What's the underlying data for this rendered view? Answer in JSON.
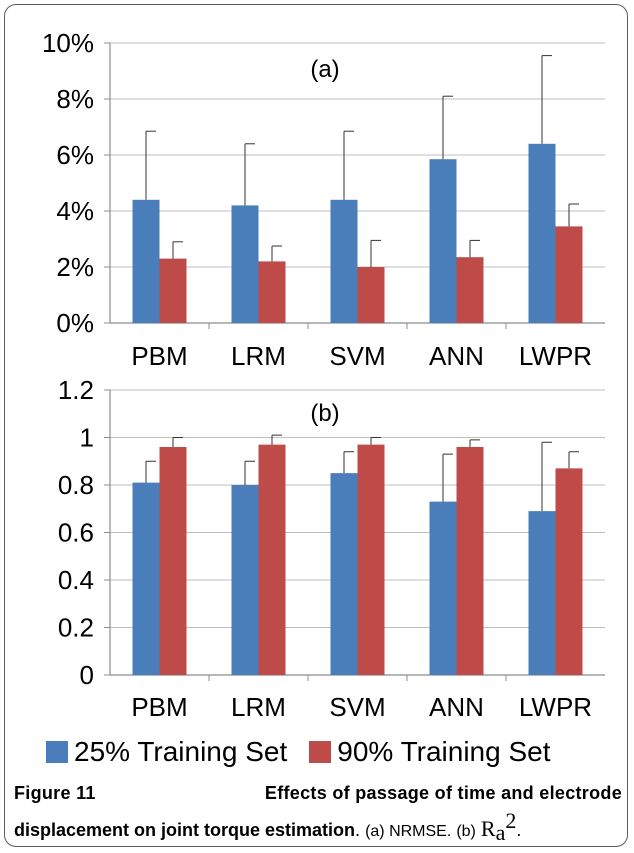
{
  "colors": {
    "series_25": "#4a7ebb",
    "series_90": "#be4b48",
    "grid": "#bfbfbf",
    "axis": "#8c8c8c",
    "error": "#333333"
  },
  "legend": {
    "series_25": "25% Training Set",
    "series_90": "90% Training Set"
  },
  "caption": {
    "figure_label": "Figure 11",
    "title": "Effects of passage of time and electrode displacement on joint torque estimation",
    "parts": {
      "a": "(a) NRMSE.",
      "b": "(b)",
      "b_symbol": "R",
      "b_subscript": "a",
      "b_superscript": "2"
    }
  },
  "chart_data": [
    {
      "type": "bar",
      "panel_label": "(a)",
      "categories": [
        "PBM",
        "LRM",
        "SVM",
        "ANN",
        "LWPR"
      ],
      "ylim": [
        0,
        10
      ],
      "yticks": [
        0,
        2,
        4,
        6,
        8,
        10
      ],
      "ytick_labels": [
        "0%",
        "2%",
        "4%",
        "6%",
        "8%",
        "10%"
      ],
      "grid": true,
      "series": [
        {
          "name": "25% Training Set",
          "values": [
            4.4,
            4.2,
            4.4,
            5.85,
            6.4
          ],
          "errors": [
            2.45,
            2.2,
            2.45,
            2.25,
            3.15
          ]
        },
        {
          "name": "90% Training Set",
          "values": [
            2.3,
            2.2,
            2.0,
            2.35,
            3.45
          ],
          "errors": [
            0.6,
            0.55,
            0.95,
            0.6,
            0.8
          ]
        }
      ]
    },
    {
      "type": "bar",
      "panel_label": "(b)",
      "categories": [
        "PBM",
        "LRM",
        "SVM",
        "ANN",
        "LWPR"
      ],
      "ylim": [
        0,
        1.2
      ],
      "yticks": [
        0,
        0.2,
        0.4,
        0.6,
        0.8,
        1,
        1.2
      ],
      "ytick_labels": [
        "0",
        "0.2",
        "0.4",
        "0.6",
        "0.8",
        "1",
        "1.2"
      ],
      "grid": true,
      "series": [
        {
          "name": "25% Training Set",
          "values": [
            0.81,
            0.8,
            0.85,
            0.73,
            0.69
          ],
          "errors": [
            0.09,
            0.1,
            0.09,
            0.2,
            0.29
          ]
        },
        {
          "name": "90% Training Set",
          "values": [
            0.96,
            0.97,
            0.97,
            0.96,
            0.87
          ],
          "errors": [
            0.04,
            0.04,
            0.03,
            0.03,
            0.07
          ]
        }
      ]
    }
  ]
}
